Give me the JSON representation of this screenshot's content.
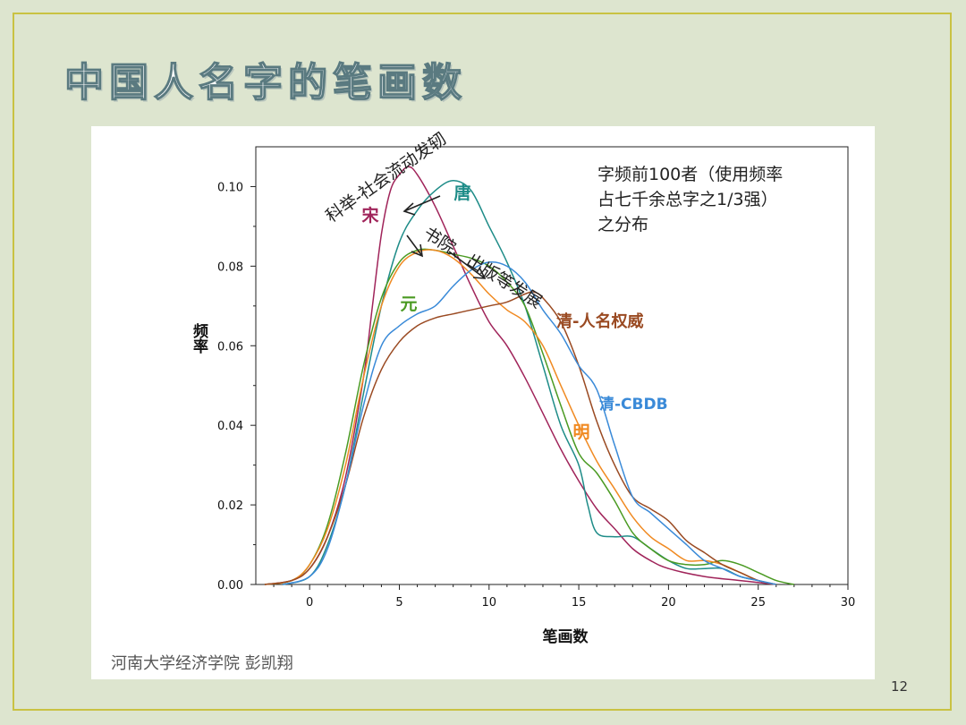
{
  "slide": {
    "title": "中国人名字的笔画数",
    "footer_author": "河南大学经济学院 彭凯翔",
    "page_number": "12"
  },
  "chart_data": {
    "type": "line",
    "xlabel": "笔画数",
    "ylabel": "频率",
    "xlim": [
      -3,
      30
    ],
    "ylim": [
      0,
      0.11
    ],
    "x_ticks": [
      0,
      5,
      10,
      15,
      20,
      25,
      30
    ],
    "y_ticks": [
      0.0,
      0.02,
      0.04,
      0.06,
      0.08,
      0.1
    ],
    "y_tick_labels": [
      "0.00",
      "0.02",
      "0.04",
      "0.06",
      "0.08",
      "0.10"
    ],
    "grid": false,
    "annotation_box": "字频前100者（使用频率占七千余总字之1/3强）之分布",
    "annotation_box_lines": [
      "字频前100者（使用频率",
      "占七千余总字之1/3强）",
      "之分布"
    ],
    "annotations": [
      {
        "text": "科举-社会流动发轫",
        "color": "#222222"
      },
      {
        "text": "书院、出版等发展",
        "color": "#222222"
      }
    ],
    "series": [
      {
        "name": "宋",
        "color": "#a0245a",
        "points": [
          [
            -2.5,
            0
          ],
          [
            -1,
            0.001
          ],
          [
            0,
            0.004
          ],
          [
            1,
            0.012
          ],
          [
            2,
            0.027
          ],
          [
            3,
            0.052
          ],
          [
            3.5,
            0.07
          ],
          [
            4,
            0.088
          ],
          [
            4.5,
            0.099
          ],
          [
            5,
            0.103
          ],
          [
            5.5,
            0.105
          ],
          [
            6,
            0.103
          ],
          [
            7,
            0.095
          ],
          [
            8,
            0.085
          ],
          [
            9,
            0.075
          ],
          [
            10,
            0.066
          ],
          [
            11,
            0.06
          ],
          [
            12,
            0.052
          ],
          [
            13,
            0.043
          ],
          [
            14,
            0.034
          ],
          [
            15,
            0.026
          ],
          [
            16,
            0.019
          ],
          [
            17,
            0.014
          ],
          [
            18,
            0.009
          ],
          [
            19,
            0.006
          ],
          [
            20,
            0.004
          ],
          [
            22,
            0.002
          ],
          [
            24,
            0.001
          ],
          [
            26,
            0
          ]
        ]
      },
      {
        "name": "唐",
        "color": "#1e8c88",
        "points": [
          [
            -1.5,
            0
          ],
          [
            0,
            0.002
          ],
          [
            1,
            0.01
          ],
          [
            2,
            0.025
          ],
          [
            3,
            0.048
          ],
          [
            4,
            0.07
          ],
          [
            5,
            0.086
          ],
          [
            6,
            0.094
          ],
          [
            7,
            0.099
          ],
          [
            8,
            0.1015
          ],
          [
            9,
            0.099
          ],
          [
            10,
            0.09
          ],
          [
            11,
            0.081
          ],
          [
            12,
            0.07
          ],
          [
            13,
            0.055
          ],
          [
            14,
            0.04
          ],
          [
            15,
            0.03
          ],
          [
            15.5,
            0.02
          ],
          [
            16,
            0.013
          ],
          [
            17,
            0.012
          ],
          [
            18,
            0.012
          ],
          [
            19,
            0.009
          ],
          [
            20,
            0.006
          ],
          [
            21,
            0.004
          ],
          [
            22,
            0.004
          ],
          [
            23,
            0.004
          ],
          [
            24,
            0.002
          ],
          [
            25,
            0.001
          ],
          [
            26,
            0
          ]
        ]
      },
      {
        "name": "元",
        "color": "#4a9a22",
        "points": [
          [
            -2.5,
            0
          ],
          [
            -1,
            0.001
          ],
          [
            0,
            0.005
          ],
          [
            1,
            0.015
          ],
          [
            2,
            0.033
          ],
          [
            3,
            0.055
          ],
          [
            4,
            0.072
          ],
          [
            5,
            0.081
          ],
          [
            6,
            0.084
          ],
          [
            7,
            0.084
          ],
          [
            8,
            0.083
          ],
          [
            9,
            0.082
          ],
          [
            10,
            0.08
          ],
          [
            11,
            0.076
          ],
          [
            12,
            0.07
          ],
          [
            13,
            0.058
          ],
          [
            14,
            0.045
          ],
          [
            15,
            0.033
          ],
          [
            16,
            0.028
          ],
          [
            17,
            0.021
          ],
          [
            18,
            0.013
          ],
          [
            19,
            0.009
          ],
          [
            20,
            0.006
          ],
          [
            21,
            0.005
          ],
          [
            22,
            0.005
          ],
          [
            23,
            0.006
          ],
          [
            24,
            0.005
          ],
          [
            25,
            0.003
          ],
          [
            26,
            0.001
          ],
          [
            27,
            0
          ]
        ]
      },
      {
        "name": "明",
        "color": "#f08a22",
        "points": [
          [
            -2.5,
            0
          ],
          [
            -1,
            0.001
          ],
          [
            0,
            0.005
          ],
          [
            1,
            0.014
          ],
          [
            2,
            0.03
          ],
          [
            3,
            0.052
          ],
          [
            4,
            0.07
          ],
          [
            5,
            0.08
          ],
          [
            6,
            0.0835
          ],
          [
            7,
            0.084
          ],
          [
            8,
            0.082
          ],
          [
            9,
            0.078
          ],
          [
            10,
            0.073
          ],
          [
            11,
            0.069
          ],
          [
            12,
            0.066
          ],
          [
            13,
            0.06
          ],
          [
            14,
            0.05
          ],
          [
            15,
            0.04
          ],
          [
            16,
            0.031
          ],
          [
            17,
            0.024
          ],
          [
            18,
            0.017
          ],
          [
            19,
            0.012
          ],
          [
            20,
            0.009
          ],
          [
            21,
            0.006
          ],
          [
            22,
            0.006
          ],
          [
            23,
            0.005
          ],
          [
            24,
            0.003
          ],
          [
            25,
            0.001
          ],
          [
            26,
            0
          ]
        ]
      },
      {
        "name": "清-人名权威",
        "color": "#9a4a22",
        "points": [
          [
            -2.5,
            0
          ],
          [
            -1,
            0.001
          ],
          [
            0,
            0.004
          ],
          [
            1,
            0.012
          ],
          [
            2,
            0.025
          ],
          [
            3,
            0.042
          ],
          [
            4,
            0.054
          ],
          [
            5,
            0.061
          ],
          [
            6,
            0.065
          ],
          [
            7,
            0.067
          ],
          [
            8,
            0.068
          ],
          [
            9,
            0.069
          ],
          [
            10,
            0.07
          ],
          [
            11,
            0.071
          ],
          [
            12,
            0.073
          ],
          [
            12.5,
            0.0735
          ],
          [
            13,
            0.072
          ],
          [
            14,
            0.066
          ],
          [
            15,
            0.055
          ],
          [
            16,
            0.041
          ],
          [
            17,
            0.03
          ],
          [
            18,
            0.022
          ],
          [
            19,
            0.019
          ],
          [
            20,
            0.016
          ],
          [
            21,
            0.011
          ],
          [
            22,
            0.008
          ],
          [
            23,
            0.005
          ],
          [
            24,
            0.003
          ],
          [
            25,
            0.001
          ],
          [
            26,
            0
          ]
        ]
      },
      {
        "name": "清-CBDB",
        "color": "#3a8ad8",
        "points": [
          [
            -1.5,
            0
          ],
          [
            0,
            0.002
          ],
          [
            1,
            0.009
          ],
          [
            2,
            0.025
          ],
          [
            3,
            0.045
          ],
          [
            4,
            0.06
          ],
          [
            5,
            0.065
          ],
          [
            6,
            0.068
          ],
          [
            7,
            0.07
          ],
          [
            8,
            0.075
          ],
          [
            9,
            0.079
          ],
          [
            10,
            0.081
          ],
          [
            11,
            0.08
          ],
          [
            12,
            0.076
          ],
          [
            13,
            0.069
          ],
          [
            14,
            0.063
          ],
          [
            15,
            0.055
          ],
          [
            16,
            0.049
          ],
          [
            17,
            0.035
          ],
          [
            18,
            0.022
          ],
          [
            19,
            0.018
          ],
          [
            20,
            0.014
          ],
          [
            21,
            0.01
          ],
          [
            22,
            0.006
          ],
          [
            23,
            0.004
          ],
          [
            24,
            0.002
          ],
          [
            25,
            0.001
          ],
          [
            26,
            0
          ]
        ]
      }
    ]
  }
}
